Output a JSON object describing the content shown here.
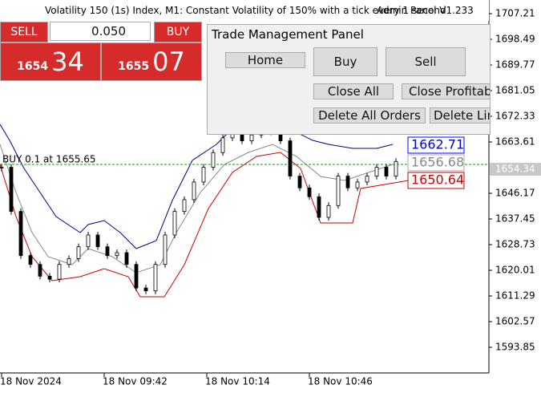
{
  "header": {
    "title": "Volatility 150 (1s) Index, M1:  Constant Volatility of 150% with a tick every 1 second",
    "overlay": "Admin Panel V1.233"
  },
  "trade_panel": {
    "sell": "SELL",
    "lot": "0.050",
    "buy": "BUY",
    "bid_main": "1654",
    "bid_pips": "34",
    "ask_main": "1655",
    "ask_pips": "07"
  },
  "management_panel": {
    "title": "Trade Management Panel",
    "home": "Home",
    "buy": "Buy",
    "sell": "Sell",
    "close_all": "Close All",
    "close_profitable": "Close Profitable",
    "delete_all": "Delete All Orders",
    "delete_limit": "Delete Limit Orders"
  },
  "chart": {
    "position_label": "BUY 0.1 at 1655.65",
    "channel_labels": [
      "1662.71",
      "1656.68",
      "1650.64"
    ],
    "current_price": 1654.34,
    "yticks": [
      1707.21,
      1698.49,
      1689.77,
      1681.05,
      1672.33,
      1663.61,
      1646.17,
      1637.45,
      1628.73,
      1620.01,
      1611.29,
      1602.57,
      1593.85
    ],
    "xlabels": [
      "18 Nov 2024",
      "18 Nov 09:42",
      "18 Nov 10:14",
      "18 Nov 10:46"
    ],
    "closes": [
      1655,
      1640,
      1625,
      1622,
      1618,
      1617,
      1622,
      1624,
      1628,
      1632,
      1628,
      1625,
      1626,
      1622,
      1614,
      1613,
      1622,
      1632,
      1640,
      1644,
      1650,
      1655,
      1660,
      1665,
      1668,
      1664,
      1666,
      1668,
      1667,
      1664,
      1652,
      1648,
      1645,
      1638,
      1642,
      1652,
      1648,
      1650,
      1652,
      1655,
      1652,
      1657
    ]
  }
}
